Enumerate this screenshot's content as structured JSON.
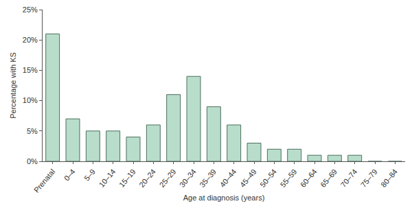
{
  "chart_data": {
    "type": "bar",
    "x_label": "Age at diagnosis (years)",
    "y_label": "Percentage with KS",
    "categories": [
      "Prenatal",
      "0–4",
      "5–9",
      "10–14",
      "15–19",
      "20–24",
      "25–29",
      "30–34",
      "35–39",
      "40–44",
      "45–49",
      "50–54",
      "55–59",
      "60–64",
      "65–69",
      "70–74",
      "75–79",
      "80–84"
    ],
    "values": [
      21,
      7,
      5,
      5,
      4,
      6,
      11,
      14,
      9,
      6,
      3,
      2,
      2,
      1,
      1,
      1,
      0,
      0
    ],
    "color": "#b9ddcb",
    "ylim": [
      0,
      25
    ],
    "yticks": [
      {
        "value": 0,
        "label": "0%"
      },
      {
        "value": 5,
        "label": "5%"
      },
      {
        "value": 10,
        "label": "10%"
      },
      {
        "value": 15,
        "label": "15%"
      },
      {
        "value": 20,
        "label": "20%"
      },
      {
        "value": 25,
        "label": "25%"
      }
    ],
    "grid": false
  }
}
